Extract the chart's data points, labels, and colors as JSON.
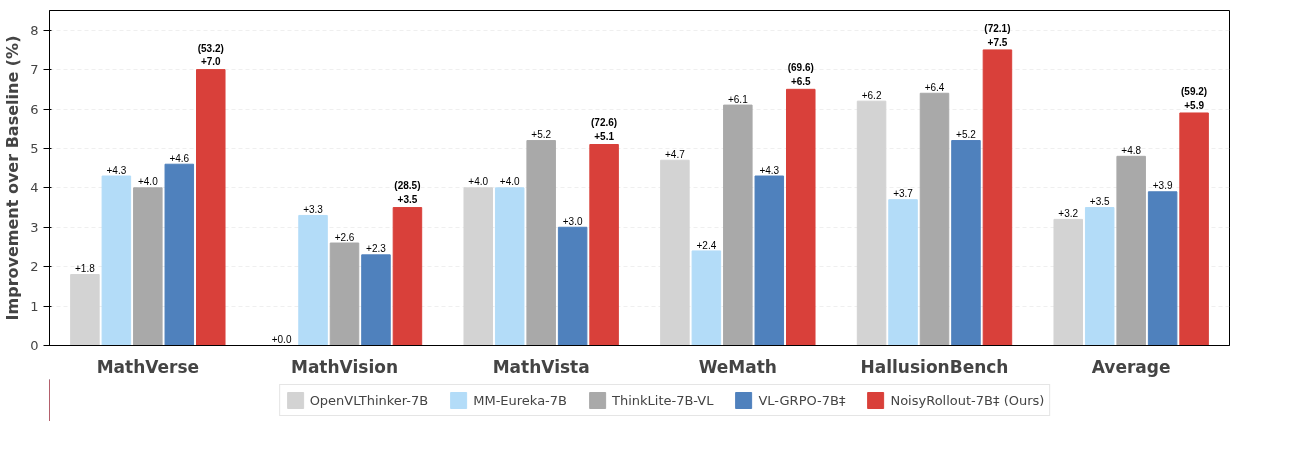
{
  "chart_data": {
    "type": "bar",
    "ylabel": "Improvement over Baseline (%)",
    "categories": [
      "MathVerse",
      "MathVision",
      "MathVista",
      "WeMath",
      "HallusionBench",
      "Average"
    ],
    "series": [
      {
        "name": "OpenVLThinker-7B",
        "color": "#d3d3d3",
        "values": [
          1.8,
          0.0,
          4.0,
          4.7,
          6.2,
          3.2
        ],
        "value_labels": [
          "+1.8",
          "+0.0",
          "+4.0",
          "+4.7",
          "+6.2",
          "+3.2"
        ]
      },
      {
        "name": "MM-Eureka-7B",
        "color": "#b3dcf8",
        "values": [
          4.3,
          3.3,
          4.0,
          2.4,
          3.7,
          3.5
        ],
        "value_labels": [
          "+4.3",
          "+3.3",
          "+4.0",
          "+2.4",
          "+3.7",
          "+3.5"
        ]
      },
      {
        "name": "ThinkLite-7B-VL",
        "color": "#a9a9a9",
        "values": [
          4.0,
          2.6,
          5.2,
          6.1,
          6.4,
          4.8
        ],
        "value_labels": [
          "+4.0",
          "+2.6",
          "+5.2",
          "+6.1",
          "+6.4",
          "+4.8"
        ]
      },
      {
        "name": "VL-GRPO-7B‡",
        "color": "#4f81bd",
        "values": [
          4.6,
          2.3,
          3.0,
          4.3,
          5.2,
          3.9
        ],
        "value_labels": [
          "+4.6",
          "+2.3",
          "+3.0",
          "+4.3",
          "+5.2",
          "+3.9"
        ]
      },
      {
        "name": "NoisyRollout-7B‡ (Ours)",
        "color": "#d9403a",
        "values": [
          7.0,
          3.5,
          5.1,
          6.5,
          7.5,
          5.9
        ],
        "value_labels": [
          "(53.2)\n+7.0",
          "(28.5)\n+3.5",
          "(72.6)\n+5.1",
          "(69.6)\n+6.5",
          "(72.1)\n+7.5",
          "(59.2)\n+5.9"
        ]
      }
    ],
    "ylim": [
      0,
      8.5
    ],
    "yticks": [
      0,
      1,
      2,
      3,
      4,
      5,
      6,
      7,
      8
    ],
    "grid": "y",
    "legend": "bottom"
  }
}
